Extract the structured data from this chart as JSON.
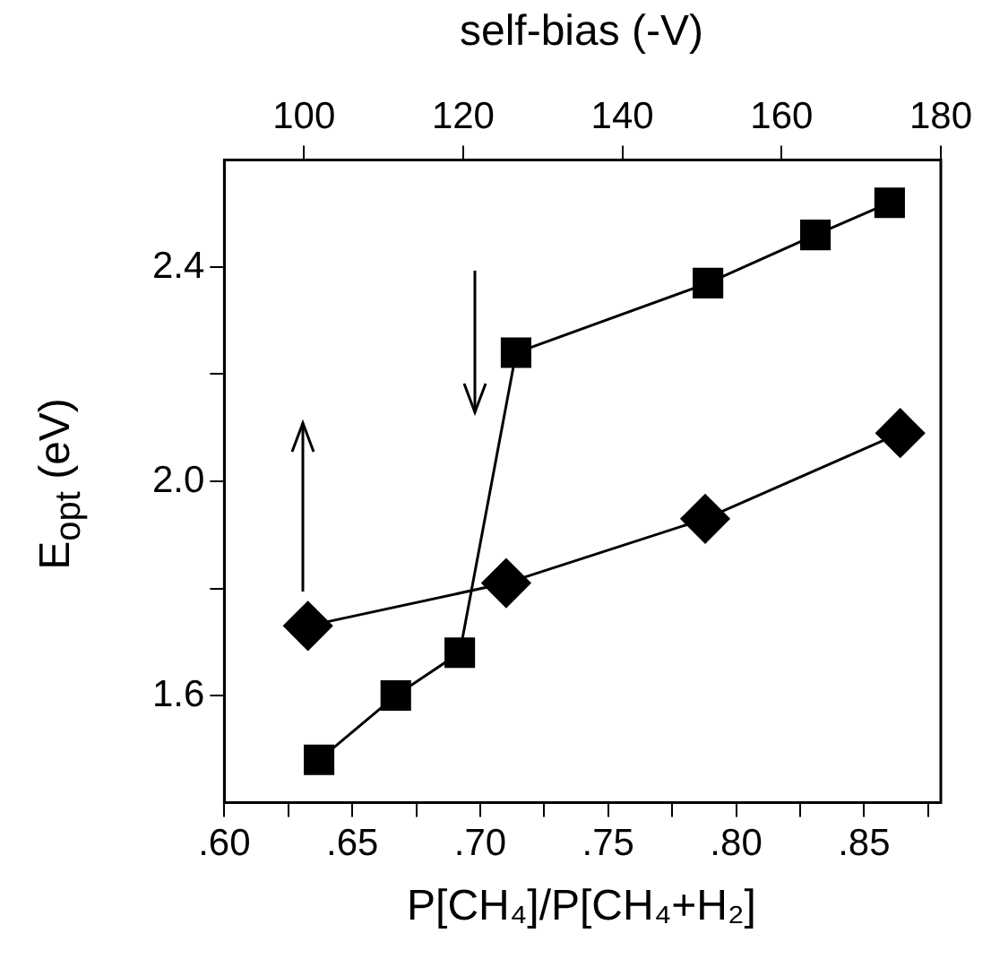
{
  "chart_data": {
    "type": "line",
    "xlabel": "P[CH₄]/P[CH₄+H₂]",
    "x2label": "self-bias (-V)",
    "ylabel": "E$_{opt}$ (eV)",
    "xlim": [
      0.6,
      0.88
    ],
    "xticks": [
      {
        "value": 0.6,
        "label": ".60"
      },
      {
        "value": 0.625,
        "label": null
      },
      {
        "value": 0.65,
        "label": ".65"
      },
      {
        "value": 0.675,
        "label": null
      },
      {
        "value": 0.7,
        "label": ".70"
      },
      {
        "value": 0.725,
        "label": null
      },
      {
        "value": 0.75,
        "label": ".75"
      },
      {
        "value": 0.775,
        "label": null
      },
      {
        "value": 0.8,
        "label": ".80"
      },
      {
        "value": 0.825,
        "label": null
      },
      {
        "value": 0.85,
        "label": ".85"
      },
      {
        "value": 0.875,
        "label": null
      }
    ],
    "x2lim": [
      90,
      180
    ],
    "x2ticks": [
      100,
      120,
      140,
      160,
      180
    ],
    "ylim": [
      1.4,
      2.6
    ],
    "yticks": [
      1.6,
      {
        "value": 1.8,
        "label": null
      },
      {
        "value": 2.0,
        "label": "2.0"
      },
      {
        "value": 2.2,
        "label": null
      },
      2.4
    ],
    "grid": false,
    "legend": false,
    "series": [
      {
        "color": "#000000",
        "marker": "square",
        "x": [
          0.637,
          0.667,
          0.692,
          0.714,
          0.789,
          0.831,
          0.86
        ],
        "values": [
          1.48,
          1.6,
          1.68,
          2.24,
          2.37,
          2.46,
          2.52
        ]
      },
      {
        "color": "#000000",
        "marker": "diamond",
        "axis": "x2",
        "x": [
          100.5,
          125.4,
          150.4,
          174.9
        ],
        "values": [
          1.73,
          1.81,
          1.93,
          2.09
        ]
      }
    ]
  }
}
